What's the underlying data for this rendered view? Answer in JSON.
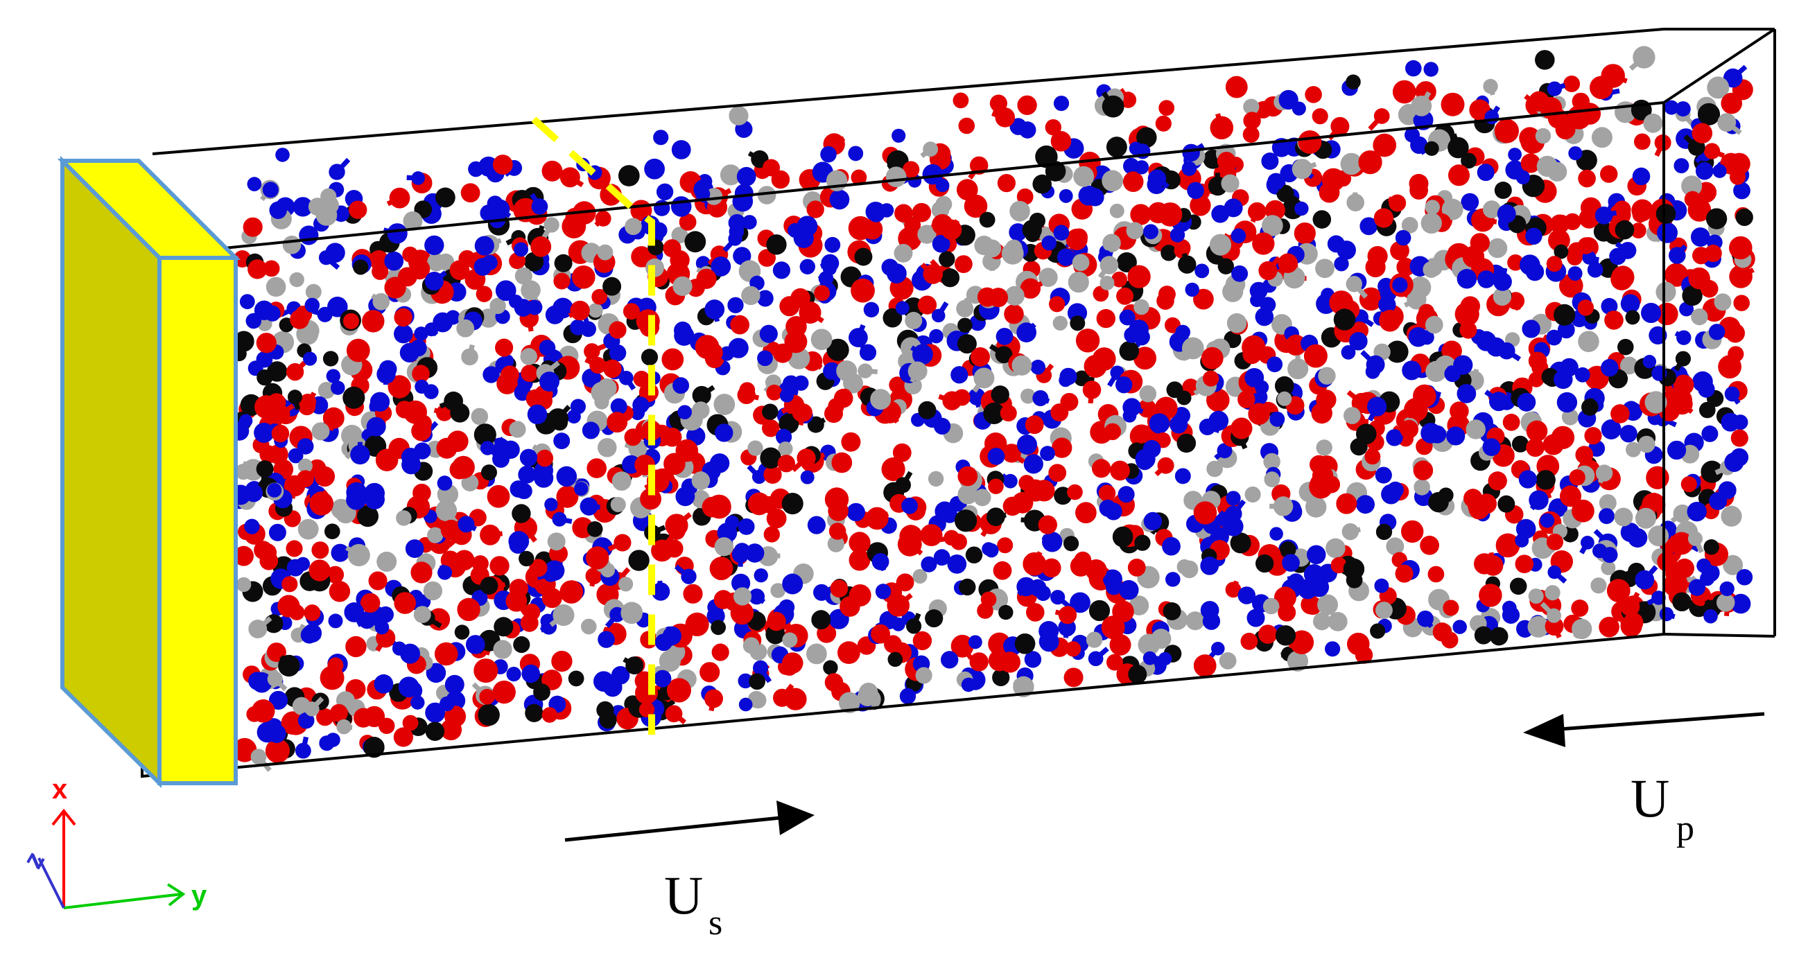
{
  "figure": {
    "legend_colors": {
      "oxygen_atom": "#e30000",
      "nitrogen_atom": "#0a0ad6",
      "carbon_atom": "#0b0b0b",
      "hydrogen_atom": "#a3a3a3",
      "piston": "#ffff00",
      "piston_side": "#cccc00",
      "piston_edge": "#5b9bd5",
      "shock_front": "#ffff00"
    },
    "labels": {
      "shock_velocity_main": "U",
      "shock_velocity_sub": "s",
      "particle_velocity_main": "U",
      "particle_velocity_sub": "p"
    },
    "axes": {
      "x_label": "x",
      "y_label": "y",
      "z_label": "z",
      "x_color": "#ff0000",
      "y_color": "#00cc00",
      "z_color": "#3333cc"
    }
  }
}
